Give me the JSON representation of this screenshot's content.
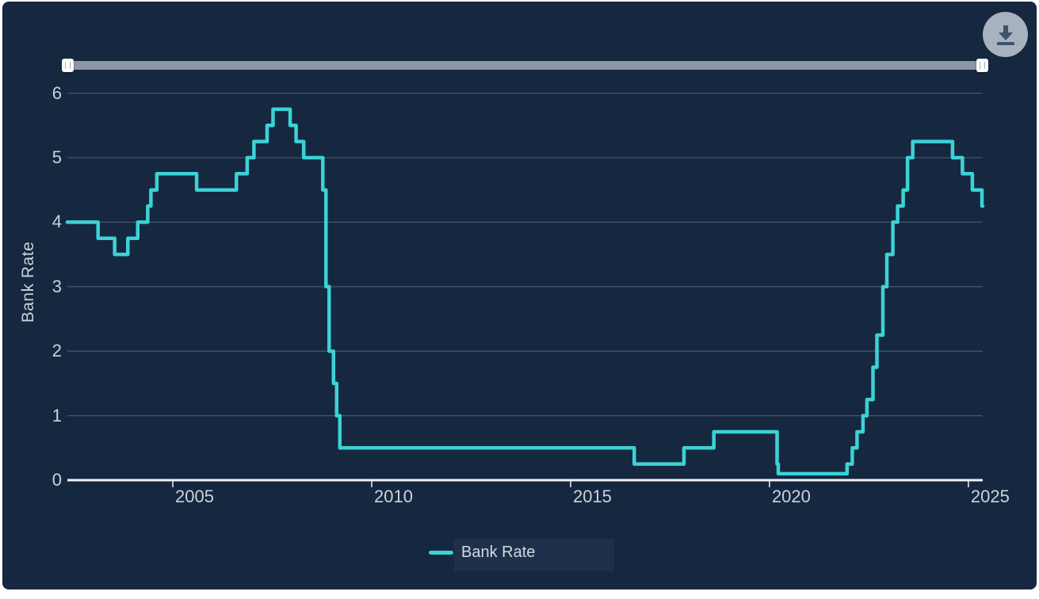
{
  "panel": {
    "background": "#152840"
  },
  "toolbar": {
    "download_button": {
      "icon": "download-icon"
    }
  },
  "slider": {
    "icon": "slider-grip",
    "track_color": "#8d97a4"
  },
  "chart_data": {
    "type": "line",
    "step": true,
    "title": "",
    "xlabel": "",
    "ylabel": "Bank Rate",
    "legend": [
      {
        "label": "Bank Rate",
        "color": "#3cd2d6"
      }
    ],
    "legend_position": "bottom-center",
    "grid": "horizontal-only",
    "x_axis": {
      "min": 2002.35,
      "max": 2025.36,
      "ticks": [
        2005,
        2010,
        2015,
        2020,
        2025
      ],
      "tick_labels": [
        "2005",
        "2010",
        "2015",
        "2020",
        "2025"
      ]
    },
    "y_axis": {
      "min": 0,
      "max": 6,
      "gridlines": [
        1,
        2,
        3,
        4,
        5,
        6
      ],
      "tick_labels": [
        "0",
        "1",
        "2",
        "3",
        "4",
        "5",
        "6"
      ]
    },
    "series": [
      {
        "name": "Bank Rate",
        "color": "#3cd2d6",
        "points": [
          [
            2002.35,
            4.0
          ],
          [
            2003.12,
            3.75
          ],
          [
            2003.54,
            3.5
          ],
          [
            2003.87,
            3.75
          ],
          [
            2004.12,
            4.0
          ],
          [
            2004.37,
            4.25
          ],
          [
            2004.45,
            4.5
          ],
          [
            2004.6,
            4.75
          ],
          [
            2005.6,
            4.5
          ],
          [
            2006.6,
            4.75
          ],
          [
            2006.87,
            5.0
          ],
          [
            2007.04,
            5.25
          ],
          [
            2007.37,
            5.5
          ],
          [
            2007.52,
            5.75
          ],
          [
            2007.95,
            5.5
          ],
          [
            2008.1,
            5.25
          ],
          [
            2008.29,
            5.0
          ],
          [
            2008.77,
            4.5
          ],
          [
            2008.85,
            3.0
          ],
          [
            2008.93,
            2.0
          ],
          [
            2009.04,
            1.5
          ],
          [
            2009.12,
            1.0
          ],
          [
            2009.2,
            0.5
          ],
          [
            2016.6,
            0.25
          ],
          [
            2017.85,
            0.5
          ],
          [
            2018.6,
            0.75
          ],
          [
            2020.19,
            0.25
          ],
          [
            2020.22,
            0.1
          ],
          [
            2021.95,
            0.25
          ],
          [
            2022.08,
            0.5
          ],
          [
            2022.2,
            0.75
          ],
          [
            2022.35,
            1.0
          ],
          [
            2022.45,
            1.25
          ],
          [
            2022.6,
            1.75
          ],
          [
            2022.7,
            2.25
          ],
          [
            2022.85,
            3.0
          ],
          [
            2022.95,
            3.5
          ],
          [
            2023.1,
            4.0
          ],
          [
            2023.22,
            4.25
          ],
          [
            2023.36,
            4.5
          ],
          [
            2023.47,
            5.0
          ],
          [
            2023.6,
            5.25
          ],
          [
            2024.6,
            5.0
          ],
          [
            2024.85,
            4.75
          ],
          [
            2025.1,
            4.5
          ],
          [
            2025.34,
            4.25
          ]
        ]
      }
    ],
    "style": {
      "line_color": "#3cd2d6",
      "line_width": 4.5,
      "gridline_color": "#45566c",
      "axis_line_color": "#eff1f4",
      "axis_text_color": "#cbd2db"
    }
  }
}
